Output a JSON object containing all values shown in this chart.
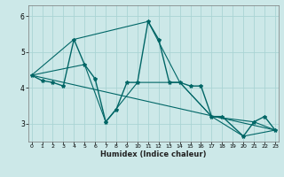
{
  "xlabel": "Humidex (Indice chaleur)",
  "background_color": "#cce8e8",
  "grid_color": "#aad4d4",
  "line_color": "#006666",
  "xlim": [
    -0.3,
    23.3
  ],
  "ylim": [
    2.5,
    6.3
  ],
  "yticks": [
    3,
    4,
    5,
    6
  ],
  "xticks": [
    0,
    1,
    2,
    3,
    4,
    5,
    6,
    7,
    8,
    9,
    10,
    11,
    12,
    13,
    14,
    15,
    16,
    17,
    18,
    19,
    20,
    21,
    22,
    23
  ],
  "series": [
    {
      "x": [
        0,
        1,
        2,
        3,
        4,
        5,
        6,
        7,
        8,
        9,
        10,
        11,
        12,
        13,
        14,
        15,
        16,
        17,
        18,
        20,
        21,
        22,
        23
      ],
      "y": [
        4.35,
        4.2,
        4.15,
        4.05,
        5.35,
        4.65,
        4.25,
        3.05,
        3.4,
        4.15,
        4.15,
        5.85,
        5.35,
        4.15,
        4.15,
        4.05,
        4.05,
        3.2,
        3.2,
        2.65,
        3.05,
        3.2,
        2.82
      ],
      "marker": "*",
      "linestyle": "-",
      "linewidth": 1.0,
      "markersize": 3.0
    },
    {
      "x": [
        0,
        23
      ],
      "y": [
        4.35,
        2.82
      ],
      "marker": null,
      "linestyle": "-",
      "linewidth": 0.8,
      "markersize": 0
    },
    {
      "x": [
        0,
        5,
        7,
        10,
        14,
        17,
        20,
        23
      ],
      "y": [
        4.35,
        4.65,
        3.05,
        4.15,
        4.15,
        3.2,
        2.65,
        2.82
      ],
      "marker": null,
      "linestyle": "-",
      "linewidth": 0.8,
      "markersize": 0
    },
    {
      "x": [
        0,
        4,
        11,
        14,
        17,
        21,
        23
      ],
      "y": [
        4.35,
        5.35,
        5.85,
        4.15,
        3.2,
        3.05,
        2.82
      ],
      "marker": null,
      "linestyle": "-",
      "linewidth": 0.8,
      "markersize": 0
    }
  ]
}
